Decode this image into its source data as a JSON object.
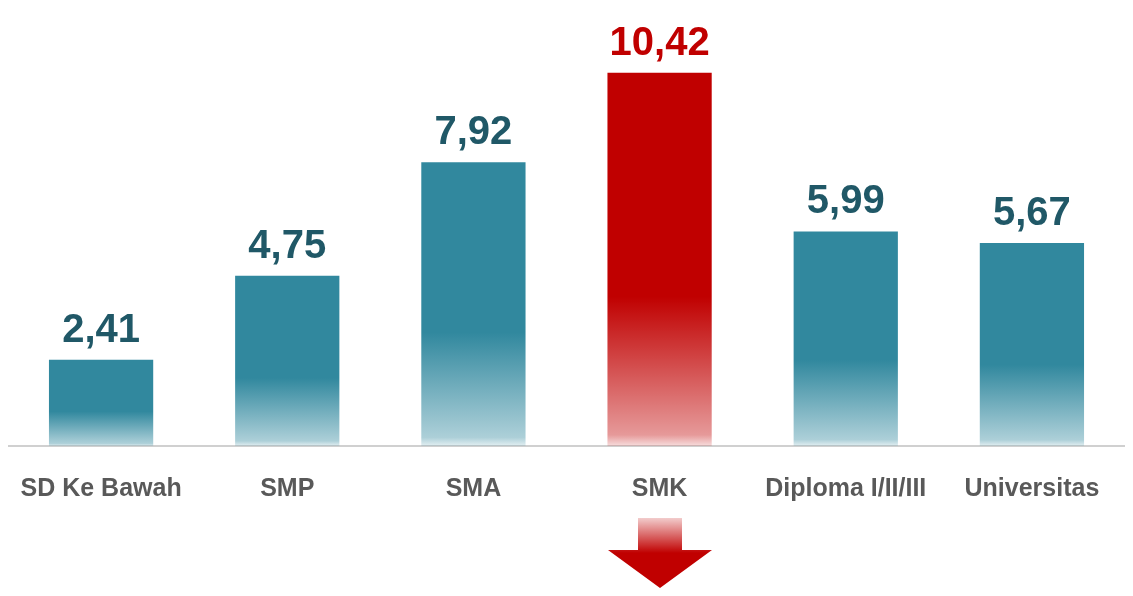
{
  "chart_data": {
    "type": "bar",
    "categories": [
      "SD Ke Bawah",
      "SMP",
      "SMA",
      "SMK",
      "Diploma I/II/III",
      "Universitas"
    ],
    "values": [
      2.41,
      4.75,
      7.92,
      10.42,
      5.99,
      5.67
    ],
    "value_labels": [
      "2,41",
      "4,75",
      "7,92",
      "10,42",
      "5,99",
      "5,67"
    ],
    "colors": [
      "#31889e",
      "#31889e",
      "#31889e",
      "#c00000",
      "#31889e",
      "#31889e"
    ]
  }
}
